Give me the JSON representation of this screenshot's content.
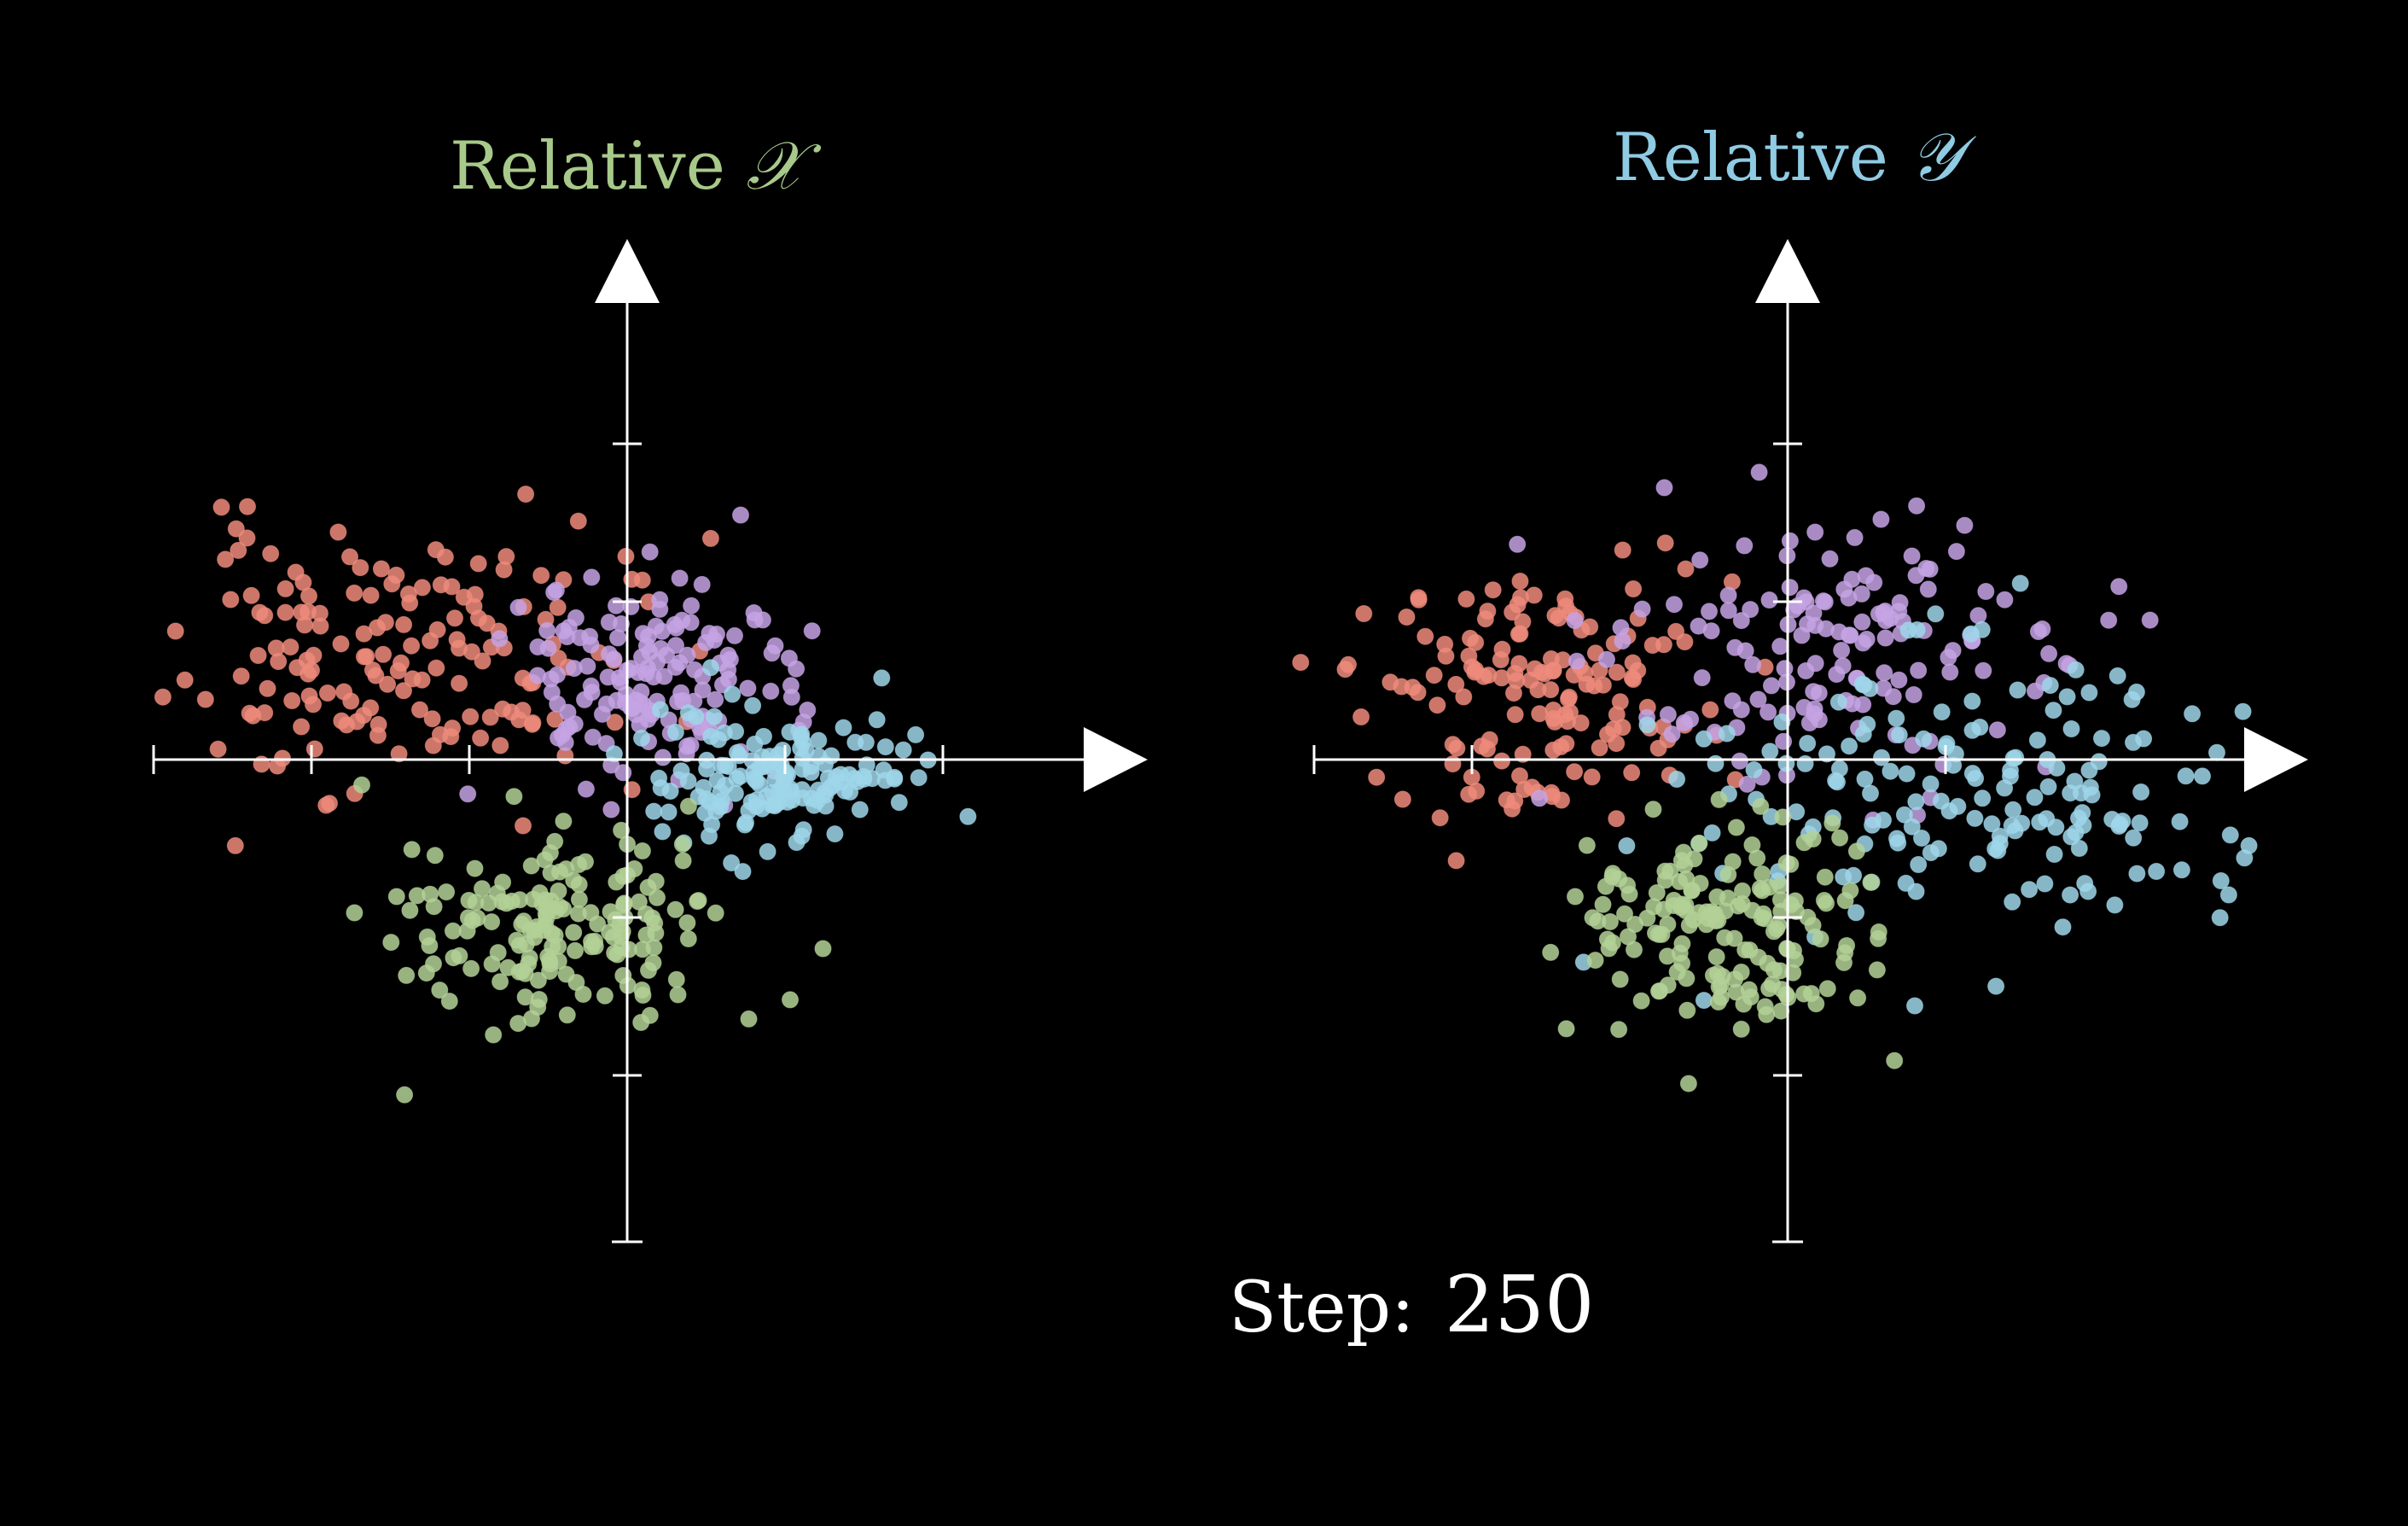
{
  "colors": {
    "background": "#000000",
    "axis": "#ffffff",
    "red": "#ef8b7b",
    "purple": "#c6a3e4",
    "cyan": "#9fd6ea",
    "green": "#b3d197",
    "title_left": "#a7c98a",
    "title_right": "#8fcbe3"
  },
  "panels": [
    {
      "title_prefix": "Relative",
      "title_var": "𝒳"
    },
    {
      "title_prefix": "Relative",
      "title_var": "𝒴"
    }
  ],
  "step": {
    "label": "Step:",
    "value": "250"
  },
  "chart_data": [
    {
      "type": "scatter",
      "title": "Relative 𝒳",
      "xlim": [
        -3,
        3
      ],
      "ylim": [
        -3,
        3
      ],
      "x_ticks": [
        -3,
        -2,
        -1,
        1,
        2
      ],
      "y_ticks": [
        -2,
        -1,
        1,
        2
      ],
      "grid": false,
      "series": [
        {
          "color": "red",
          "cx": -1.5,
          "cy": 0.65,
          "sx": 0.7,
          "sy": 0.42,
          "n": 160,
          "seed": 11
        },
        {
          "color": "purple",
          "cx": 0.15,
          "cy": 0.5,
          "sx": 0.45,
          "sy": 0.32,
          "n": 150,
          "seed": 23
        },
        {
          "color": "cyan",
          "cx": 1.0,
          "cy": -0.1,
          "sx": 0.4,
          "sy": 0.22,
          "n": 150,
          "seed": 37
        },
        {
          "color": "green",
          "cx": -0.4,
          "cy": -1.05,
          "sx": 0.5,
          "sy": 0.32,
          "n": 170,
          "seed": 41
        }
      ]
    },
    {
      "type": "scatter",
      "title": "Relative 𝒴",
      "xlim": [
        -3,
        3
      ],
      "ylim": [
        -3,
        3
      ],
      "x_ticks": [
        -3,
        -2,
        1
      ],
      "y_ticks": [
        -2,
        -1,
        1,
        2
      ],
      "grid": false,
      "series": [
        {
          "color": "red",
          "cx": -1.6,
          "cy": 0.45,
          "sx": 0.55,
          "sy": 0.38,
          "n": 150,
          "seed": 53
        },
        {
          "color": "purple",
          "cx": 0.3,
          "cy": 0.75,
          "sx": 0.75,
          "sy": 0.42,
          "n": 150,
          "seed": 67
        },
        {
          "color": "cyan",
          "cx": 1.2,
          "cy": -0.2,
          "sx": 1.0,
          "sy": 0.45,
          "n": 170,
          "seed": 71
        },
        {
          "color": "green",
          "cx": -0.45,
          "cy": -1.05,
          "sx": 0.5,
          "sy": 0.35,
          "n": 170,
          "seed": 83
        }
      ]
    }
  ]
}
